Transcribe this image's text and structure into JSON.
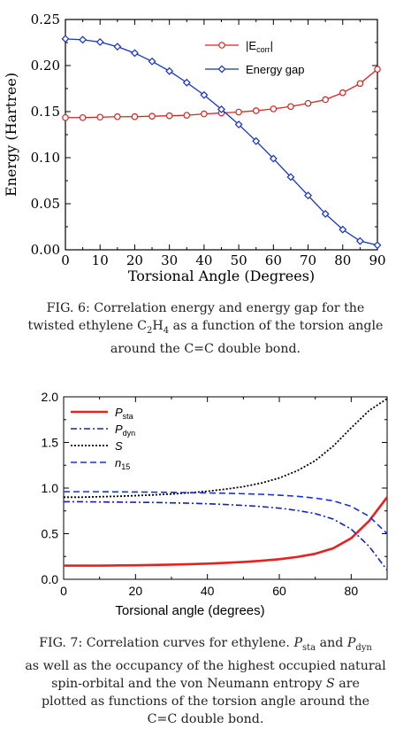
{
  "chart_data": [
    {
      "type": "line",
      "xlabel": "Torsional Angle (Degrees)",
      "ylabel": "Energy (Hartree)",
      "xlim": [
        0,
        90
      ],
      "ylim": [
        0.0,
        0.25
      ],
      "xticks": [
        "0",
        "10",
        "20",
        "30",
        "40",
        "50",
        "60",
        "70",
        "80",
        "90"
      ],
      "yticks": [
        "0.00",
        "0.05",
        "0.10",
        "0.15",
        "0.20",
        "0.25"
      ],
      "grid": false,
      "legend_position": "top-right",
      "x": [
        0,
        5,
        10,
        15,
        20,
        25,
        30,
        35,
        40,
        45,
        50,
        55,
        60,
        65,
        70,
        75,
        80,
        85,
        90
      ],
      "series": [
        {
          "name": "|E_corr|",
          "color": "#e02020",
          "marker": "circle",
          "values": [
            0.1435,
            0.1435,
            0.144,
            0.1445,
            0.1445,
            0.145,
            0.1455,
            0.146,
            0.1475,
            0.1485,
            0.1495,
            0.151,
            0.153,
            0.1555,
            0.159,
            0.163,
            0.1705,
            0.1805,
            0.196
          ]
        },
        {
          "name": "Energy gap",
          "color": "#1530d0",
          "marker": "diamond",
          "values": [
            0.229,
            0.228,
            0.2255,
            0.2205,
            0.2135,
            0.2045,
            0.194,
            0.1815,
            0.168,
            0.1525,
            0.136,
            0.118,
            0.099,
            0.079,
            0.059,
            0.039,
            0.022,
            0.0095,
            0.005
          ]
        }
      ]
    },
    {
      "type": "line",
      "xlabel": "Torsional angle (degrees)",
      "ylabel": "",
      "xlim": [
        0,
        90
      ],
      "ylim": [
        0.0,
        2.0
      ],
      "xticks": [
        "0",
        "20",
        "40",
        "60",
        "80"
      ],
      "yticks": [
        "0.0",
        "0.5",
        "1.0",
        "1.5",
        "2.0"
      ],
      "grid": false,
      "legend_position": "top-left",
      "x": [
        0,
        5,
        10,
        15,
        20,
        25,
        30,
        35,
        40,
        45,
        50,
        55,
        60,
        65,
        70,
        75,
        80,
        85,
        90
      ],
      "series": [
        {
          "name": "P_sta",
          "color": "#e82020",
          "style": "solid",
          "values": [
            0.15,
            0.15,
            0.15,
            0.152,
            0.154,
            0.157,
            0.161,
            0.166,
            0.172,
            0.18,
            0.19,
            0.203,
            0.22,
            0.245,
            0.28,
            0.34,
            0.45,
            0.64,
            0.9
          ]
        },
        {
          "name": "P_dyn",
          "color": "#1020c8",
          "style": "dashdot",
          "values": [
            0.85,
            0.85,
            0.848,
            0.846,
            0.844,
            0.842,
            0.838,
            0.834,
            0.828,
            0.82,
            0.81,
            0.797,
            0.78,
            0.755,
            0.72,
            0.66,
            0.55,
            0.36,
            0.1
          ]
        },
        {
          "name": "S",
          "color": "#000000",
          "style": "dotted",
          "values": [
            0.9,
            0.9,
            0.905,
            0.91,
            0.917,
            0.925,
            0.935,
            0.948,
            0.965,
            0.988,
            1.015,
            1.055,
            1.11,
            1.19,
            1.3,
            1.46,
            1.66,
            1.85,
            1.98
          ]
        },
        {
          "name": "n_15",
          "color": "#1530e0",
          "style": "dashed",
          "values": [
            0.96,
            0.96,
            0.96,
            0.958,
            0.957,
            0.955,
            0.953,
            0.95,
            0.947,
            0.943,
            0.938,
            0.932,
            0.922,
            0.91,
            0.89,
            0.86,
            0.8,
            0.69,
            0.5
          ]
        }
      ]
    }
  ],
  "captions": {
    "fig6": "FIG. 6: Correlation energy and energy gap for the twisted ethylene C2H4 as a function of the torsion angle around the C=C double bond.",
    "fig7": "FIG. 7: Correlation curves for ethylene. Psta and Pdyn as well as the occupancy of the highest occupied natural spin-orbital and the von Neumann entropy S are plotted as functions of the torsion angle around the C=C double bond."
  },
  "fig6_caption_parts": {
    "l1": "FIG. 6: Correlation energy and energy gap for the",
    "l2a": "twisted ethylene C",
    "l2b": "2",
    "l2c": "H",
    "l2d": "4",
    "l2e": " as a function of the torsion angle",
    "l3": "around the C=C double bond."
  },
  "fig7_caption_parts": {
    "l1": "FIG. 7: Correlation curves for ethylene.",
    "p": "P",
    "sta": "sta",
    "and": " and ",
    "dyn": "dyn",
    "l2": "as well as the occupancy of the highest occupied natural",
    "l3": "spin-orbital and the von Neumann entropy",
    "s": "S",
    "l3b": " are",
    "l4": "plotted as functions of the torsion angle around the",
    "l5": "C=C double bond."
  },
  "legend1": [
    {
      "main": "|E",
      "sub": "corr",
      "tail": "|"
    },
    {
      "main": "Energy gap"
    }
  ],
  "legend2": [
    {
      "main": "P",
      "sub": "sta"
    },
    {
      "main": "P",
      "sub": "dyn"
    },
    {
      "main": "S"
    },
    {
      "main": "n",
      "sub": "15"
    }
  ]
}
